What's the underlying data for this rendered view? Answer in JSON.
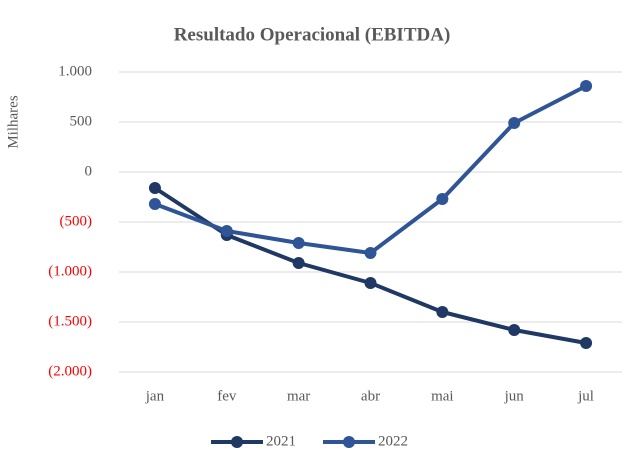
{
  "chart_data": {
    "type": "line",
    "title": "Resultado Operacional (EBITDA)",
    "y_label": "Milhares",
    "categories": [
      "jan",
      "fev",
      "mar",
      "abr",
      "mai",
      "jun",
      "jul"
    ],
    "series": [
      {
        "name": "2021",
        "color": "#1f3864",
        "values": [
          -160,
          -630,
          -910,
          -1110,
          -1400,
          -1580,
          -1710
        ]
      },
      {
        "name": "2022",
        "color": "#2f5597",
        "values": [
          -320,
          -590,
          -710,
          -810,
          -270,
          490,
          860
        ]
      }
    ],
    "ylim": [
      -2000,
      1000
    ],
    "yticks": [
      {
        "value": 1000,
        "label": "1.000"
      },
      500,
      0,
      {
        "value": -500,
        "label": "(500)"
      },
      {
        "value": -1000,
        "label": "(1.000)"
      },
      {
        "value": -1500,
        "label": "(1.500)"
      },
      {
        "value": -2000,
        "label": "(2.000)"
      }
    ],
    "negative_color": "#ff0000",
    "grid": true,
    "legend": "bottom"
  }
}
